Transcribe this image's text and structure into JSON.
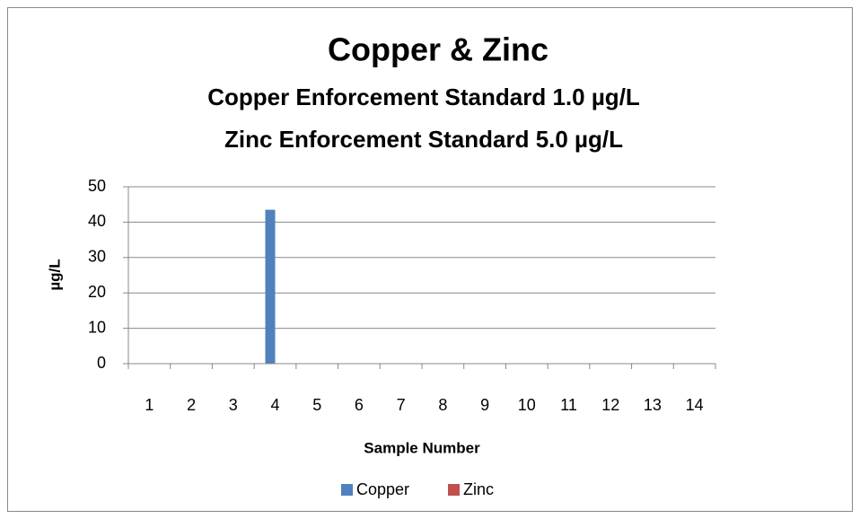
{
  "chart_data": {
    "type": "bar",
    "title": "Copper & Zinc",
    "subtitle": [
      "Copper Enforcement Standard 1.0 µg/L",
      "Zinc Enforcement Standard 5.0 µg/L"
    ],
    "x_label": "Sample Number",
    "y_label": "µg/L",
    "categories": [
      "1",
      "2",
      "3",
      "4",
      "5",
      "6",
      "7",
      "8",
      "9",
      "10",
      "11",
      "12",
      "13",
      "14"
    ],
    "series": [
      {
        "name": "Copper",
        "color": "#4f81bd",
        "values": [
          0,
          0,
          0,
          43.5,
          0,
          0,
          0,
          0,
          0,
          0,
          0,
          0,
          0,
          0
        ]
      },
      {
        "name": "Zinc",
        "color": "#c0504d",
        "values": [
          0,
          0,
          0,
          0,
          0,
          0,
          0,
          0,
          0,
          0,
          0,
          0,
          0,
          0
        ]
      }
    ],
    "ylim": [
      0,
      50
    ],
    "yticks": [
      0,
      10,
      20,
      30,
      40,
      50
    ],
    "grid": true,
    "legend": "bottom"
  }
}
